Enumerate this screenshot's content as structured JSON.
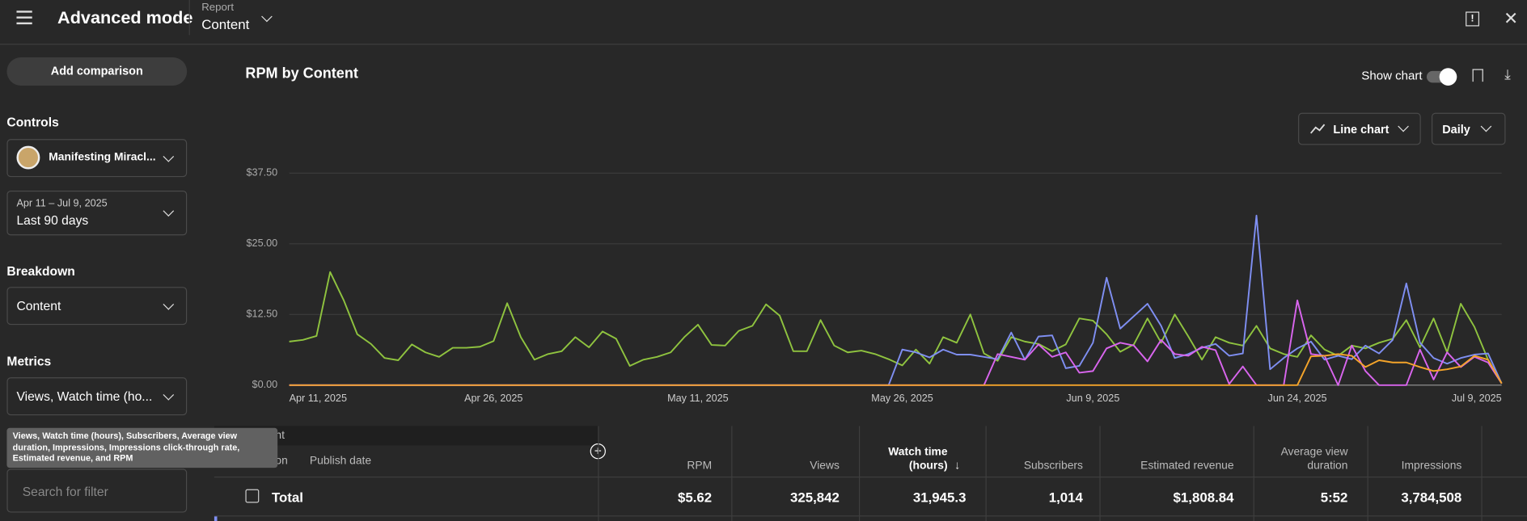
{
  "header": {
    "title": "Advanced mode",
    "report_label": "Report",
    "report_value": "Content"
  },
  "sidebar": {
    "add_comparison": "Add comparison",
    "controls_label": "Controls",
    "channel": "Manifesting Miracl...",
    "date_range": "Apr 11 – Jul 9, 2025",
    "period": "Last 90 days",
    "breakdown_label": "Breakdown",
    "breakdown": "Content",
    "metrics_label": "Metrics",
    "metrics": "Views, Watch time (ho...",
    "metrics_tooltip": "Views, Watch time (hours), Subscribers, Average view duration, Impressions, Impressions click-through rate, Estimated revenue, and RPM",
    "search_placeholder": "Search for filter"
  },
  "toolbar": {
    "show_chart": "Show chart",
    "chart_type": "Line chart",
    "interval": "Daily"
  },
  "chart_data": {
    "type": "line",
    "title": "RPM by Content",
    "x": [
      "2025-04-11",
      "2025-04-12",
      "2025-04-13",
      "2025-04-14",
      "2025-04-15",
      "2025-04-16",
      "2025-04-17",
      "2025-04-18",
      "2025-04-19",
      "2025-04-20",
      "2025-04-21",
      "2025-04-22",
      "2025-04-23",
      "2025-04-24",
      "2025-04-25",
      "2025-04-26",
      "2025-04-27",
      "2025-04-28",
      "2025-04-29",
      "2025-04-30",
      "2025-05-01",
      "2025-05-02",
      "2025-05-03",
      "2025-05-04",
      "2025-05-05",
      "2025-05-06",
      "2025-05-07",
      "2025-05-08",
      "2025-05-09",
      "2025-05-10",
      "2025-05-11",
      "2025-05-12",
      "2025-05-13",
      "2025-05-14",
      "2025-05-15",
      "2025-05-16",
      "2025-05-17",
      "2025-05-18",
      "2025-05-19",
      "2025-05-20",
      "2025-05-21",
      "2025-05-22",
      "2025-05-23",
      "2025-05-24",
      "2025-05-25",
      "2025-05-26",
      "2025-05-27",
      "2025-05-28",
      "2025-05-29",
      "2025-05-30",
      "2025-05-31",
      "2025-06-01",
      "2025-06-02",
      "2025-06-03",
      "2025-06-04",
      "2025-06-05",
      "2025-06-06",
      "2025-06-07",
      "2025-06-08",
      "2025-06-09",
      "2025-06-10",
      "2025-06-11",
      "2025-06-12",
      "2025-06-13",
      "2025-06-14",
      "2025-06-15",
      "2025-06-16",
      "2025-06-17",
      "2025-06-18",
      "2025-06-19",
      "2025-06-20",
      "2025-06-21",
      "2025-06-22",
      "2025-06-23",
      "2025-06-24",
      "2025-06-25",
      "2025-06-26",
      "2025-06-27",
      "2025-06-28",
      "2025-06-29",
      "2025-06-30",
      "2025-07-01",
      "2025-07-02",
      "2025-07-03",
      "2025-07-04",
      "2025-07-05",
      "2025-07-06",
      "2025-07-07",
      "2025-07-08",
      "2025-07-09"
    ],
    "series": [
      {
        "color": "#8fc33f",
        "values": [
          7.7,
          8,
          8.7,
          20,
          15,
          9,
          7.3,
          4.8,
          4.4,
          7.2,
          5.8,
          5,
          6.6,
          6.6,
          6.8,
          7.8,
          14.5,
          8.5,
          4.5,
          5.5,
          6,
          8.5,
          6.7,
          9.5,
          8.2,
          3.4,
          4.5,
          5,
          5.8,
          8.5,
          10.7,
          7.1,
          7,
          9.6,
          10.5,
          14.3,
          12.3,
          6,
          6,
          11.5,
          7,
          5.8,
          6.1,
          5.5,
          4.6,
          3.5,
          6.3,
          3.8,
          8.5,
          7.5,
          12.5,
          5.6,
          4.3,
          8.5,
          7.7,
          7.3,
          6,
          7.2,
          11.8,
          11.4,
          9,
          5.9,
          7.2,
          11.8,
          7.5,
          12.5,
          8.6,
          4.5,
          8.5,
          7.5,
          7,
          10.5,
          6.5,
          5.5,
          5,
          8.8,
          6.3,
          5.2,
          7,
          6.5,
          7.5,
          8.2,
          11.5,
          6.7,
          11.8,
          5.8,
          14.4,
          10.3,
          4.5,
          0.3
        ]
      },
      {
        "color": "#7f8ff2",
        "values": [
          0,
          0,
          0,
          0,
          0,
          0,
          0,
          0,
          0,
          0,
          0,
          0,
          0,
          0,
          0,
          0,
          0,
          0,
          0,
          0,
          0,
          0,
          0,
          0,
          0,
          0,
          0,
          0,
          0,
          0,
          0,
          0,
          0,
          0,
          0,
          0,
          0,
          0,
          0,
          0,
          0,
          0,
          0,
          0,
          0,
          6.3,
          5.8,
          4.9,
          6.3,
          5.4,
          5.4,
          5,
          4.6,
          9.3,
          4.5,
          8.6,
          8.8,
          3,
          3.4,
          7.5,
          19,
          10,
          12.2,
          14.4,
          10.5,
          4.8,
          5.5,
          6.6,
          7.3,
          5.2,
          5.6,
          30,
          2.8,
          4.8,
          6.5,
          7.7,
          4.5,
          5.2,
          4.6,
          7,
          5.6,
          8,
          18,
          7.5,
          4.8,
          3.8,
          4.8,
          5.4,
          5.6,
          0.3
        ]
      },
      {
        "color": "#d965ee",
        "values": [
          0,
          0,
          0,
          0,
          0,
          0,
          0,
          0,
          0,
          0,
          0,
          0,
          0,
          0,
          0,
          0,
          0,
          0,
          0,
          0,
          0,
          0,
          0,
          0,
          0,
          0,
          0,
          0,
          0,
          0,
          0,
          0,
          0,
          0,
          0,
          0,
          0,
          0,
          0,
          0,
          0,
          0,
          0,
          0,
          0,
          0,
          0,
          0,
          0,
          0,
          0,
          0,
          5.5,
          5,
          4.5,
          7.2,
          5,
          5.8,
          2.2,
          2.5,
          6.5,
          7.5,
          7,
          4.2,
          8,
          5.5,
          5.2,
          6.8,
          6.2,
          0.2,
          3.3,
          0,
          0,
          0,
          15,
          5.5,
          5.2,
          0,
          7,
          2.5,
          0,
          0,
          0,
          6.3,
          1,
          5.8,
          3.2,
          5,
          4,
          0.3
        ]
      },
      {
        "color": "#f4a42a",
        "values": [
          0,
          0,
          0,
          0,
          0,
          0,
          0,
          0,
          0,
          0,
          0,
          0,
          0,
          0,
          0,
          0,
          0,
          0,
          0,
          0,
          0,
          0,
          0,
          0,
          0,
          0,
          0,
          0,
          0,
          0,
          0,
          0,
          0,
          0,
          0,
          0,
          0,
          0,
          0,
          0,
          0,
          0,
          0,
          0,
          0,
          0,
          0,
          0,
          0,
          0,
          0,
          0,
          0,
          0,
          0,
          0,
          0,
          0,
          0,
          0,
          0,
          0,
          0,
          0,
          0,
          0,
          0,
          0,
          0,
          0,
          0,
          0,
          0,
          0,
          0,
          5.1,
          5.2,
          5.5,
          5.2,
          3.2,
          4.4,
          4,
          4,
          3.2,
          2.5,
          2.8,
          3.3,
          5.2,
          4.5,
          0.3
        ]
      }
    ],
    "ylim": [
      0,
      37.5
    ],
    "yticks": [
      {
        "value": 0,
        "label": "$0.00"
      },
      {
        "value": 12.5,
        "label": "$12.50"
      },
      {
        "value": 25,
        "label": "$25.00"
      },
      {
        "value": 37.5,
        "label": "$37.50"
      }
    ],
    "xticks": [
      {
        "value": "2025-04-11",
        "label": "Apr 11, 2025"
      },
      {
        "value": "2025-04-26",
        "label": "Apr 26, 2025"
      },
      {
        "value": "2025-05-11",
        "label": "May 11, 2025"
      },
      {
        "value": "2025-05-26",
        "label": "May 26, 2025"
      },
      {
        "value": "2025-06-09",
        "label": "Jun 9, 2025"
      },
      {
        "value": "2025-06-24",
        "label": "Jun 24, 2025"
      },
      {
        "value": "2025-07-09",
        "label": "Jul 9, 2025"
      }
    ],
    "grid": true
  },
  "table": {
    "left_columns": [
      "Content",
      "Duration",
      "Publish date"
    ],
    "columns": [
      "RPM",
      "Views",
      "Watch time (hours)",
      "Subscribers",
      "Estimated revenue",
      "Average view duration",
      "Impressions"
    ],
    "total_label": "Total",
    "total": [
      "$5.62",
      "325,842",
      "31,945.3",
      "1,014",
      "$1,808.84",
      "5:52",
      "3,784,508"
    ]
  }
}
